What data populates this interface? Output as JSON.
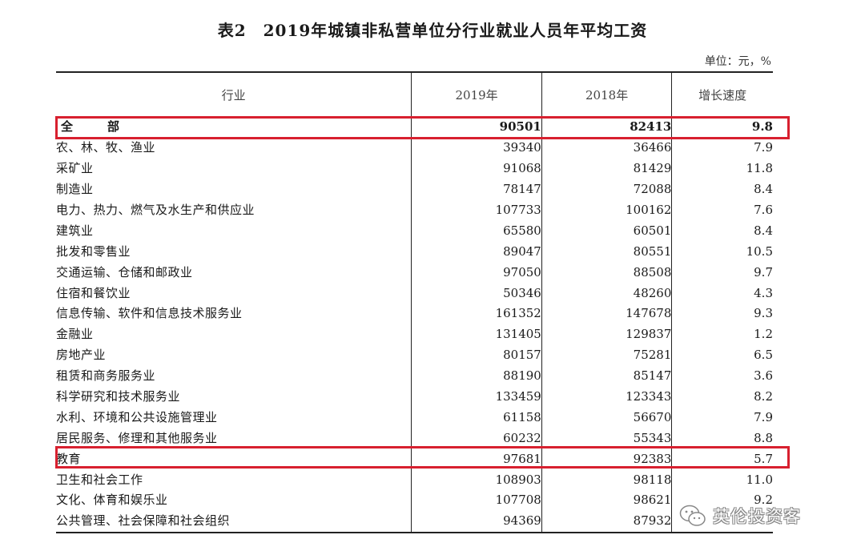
{
  "title": "表2　2019年城镇非私营单位分行业就业人员年平均工资",
  "unit_note": "单位：元，%",
  "headers": {
    "industry": "行业",
    "y2019": "2019年",
    "y2018": "2018年",
    "growth": "增长速度"
  },
  "rows": [
    {
      "industry": "全　部",
      "y2019": "90501",
      "y2018": "82413",
      "growth": "9.8"
    },
    {
      "industry": "农、林、牧、渔业",
      "y2019": "39340",
      "y2018": "36466",
      "growth": "7.9"
    },
    {
      "industry": "采矿业",
      "y2019": "91068",
      "y2018": "81429",
      "growth": "11.8"
    },
    {
      "industry": "制造业",
      "y2019": "78147",
      "y2018": "72088",
      "growth": "8.4"
    },
    {
      "industry": "电力、热力、燃气及水生产和供应业",
      "y2019": "107733",
      "y2018": "100162",
      "growth": "7.6"
    },
    {
      "industry": "建筑业",
      "y2019": "65580",
      "y2018": "60501",
      "growth": "8.4"
    },
    {
      "industry": "批发和零售业",
      "y2019": "89047",
      "y2018": "80551",
      "growth": "10.5"
    },
    {
      "industry": "交通运输、仓储和邮政业",
      "y2019": "97050",
      "y2018": "88508",
      "growth": "9.7"
    },
    {
      "industry": "住宿和餐饮业",
      "y2019": "50346",
      "y2018": "48260",
      "growth": "4.3"
    },
    {
      "industry": "信息传输、软件和信息技术服务业",
      "y2019": "161352",
      "y2018": "147678",
      "growth": "9.3"
    },
    {
      "industry": "金融业",
      "y2019": "131405",
      "y2018": "129837",
      "growth": "1.2"
    },
    {
      "industry": "房地产业",
      "y2019": "80157",
      "y2018": "75281",
      "growth": "6.5"
    },
    {
      "industry": "租赁和商务服务业",
      "y2019": "88190",
      "y2018": "85147",
      "growth": "3.6"
    },
    {
      "industry": "科学研究和技术服务业",
      "y2019": "133459",
      "y2018": "123343",
      "growth": "8.2"
    },
    {
      "industry": "水利、环境和公共设施管理业",
      "y2019": "61158",
      "y2018": "56670",
      "growth": "7.9"
    },
    {
      "industry": "居民服务、修理和其他服务业",
      "y2019": "60232",
      "y2018": "55343",
      "growth": "8.8"
    },
    {
      "industry": "教育",
      "y2019": "97681",
      "y2018": "92383",
      "growth": "5.7"
    },
    {
      "industry": "卫生和社会工作",
      "y2019": "108903",
      "y2018": "98118",
      "growth": "11.0"
    },
    {
      "industry": "文化、体育和娱乐业",
      "y2019": "107708",
      "y2018": "98621",
      "growth": "9.2"
    },
    {
      "industry": "公共管理、社会保障和社会组织",
      "y2019": "94369",
      "y2018": "87932",
      "growth": ""
    }
  ],
  "highlight_color": "#d8202f",
  "watermark": {
    "text": "英伦投资客",
    "icon": "wechat-icon"
  }
}
